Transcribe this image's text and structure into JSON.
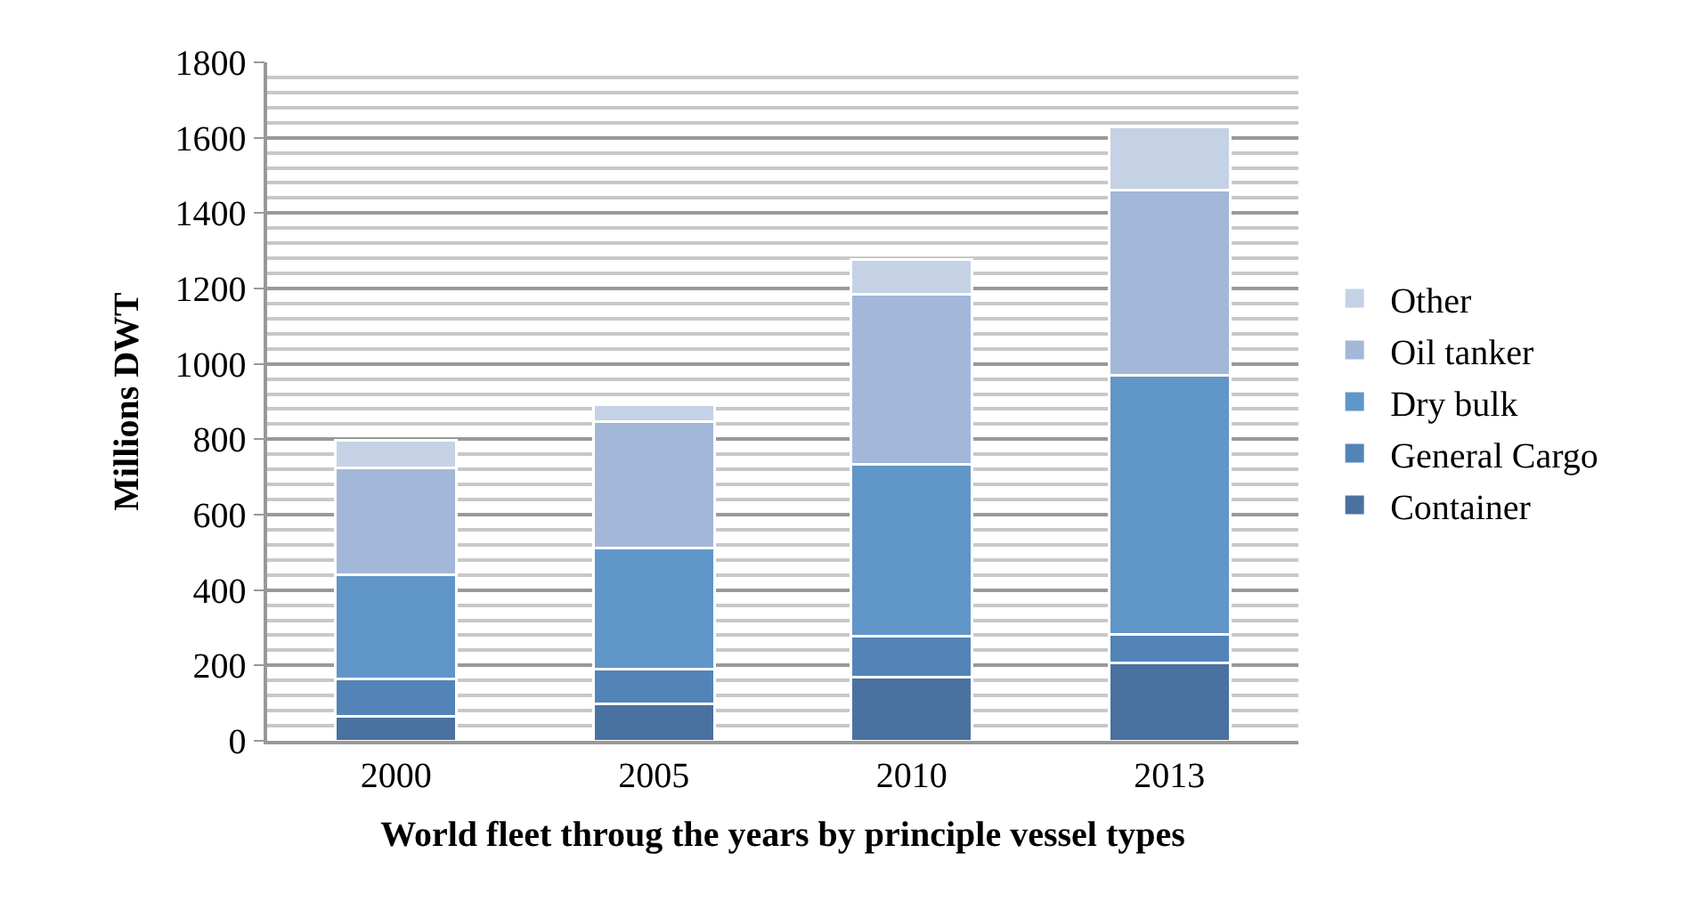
{
  "chart_data": {
    "type": "bar",
    "stacked": true,
    "xlabel": "World fleet throug the years by principle vessel types",
    "ylabel": "Millions DWT",
    "categories": [
      "2000",
      "2005",
      "2010",
      "2013"
    ],
    "series": [
      {
        "name": "Container",
        "color": "#4a72a0",
        "values": [
          64,
          98,
          169,
          206
        ]
      },
      {
        "name": "General Cargo",
        "color": "#5384b8",
        "values": [
          101,
          92,
          108,
          77
        ]
      },
      {
        "name": "Dry bulk",
        "color": "#6096c8",
        "values": [
          276,
          321,
          457,
          686
        ]
      },
      {
        "name": "Oil tanker",
        "color": "#a3b7d8",
        "values": [
          282,
          336,
          450,
          491
        ]
      },
      {
        "name": "Other",
        "color": "#c5d2e5",
        "values": [
          75,
          45,
          92,
          168
        ]
      }
    ],
    "ylim": [
      0,
      1800
    ],
    "yticks": [
      0,
      200,
      400,
      600,
      800,
      1000,
      1200,
      1400,
      1600,
      1800
    ],
    "grid": "y",
    "legend": "right"
  }
}
